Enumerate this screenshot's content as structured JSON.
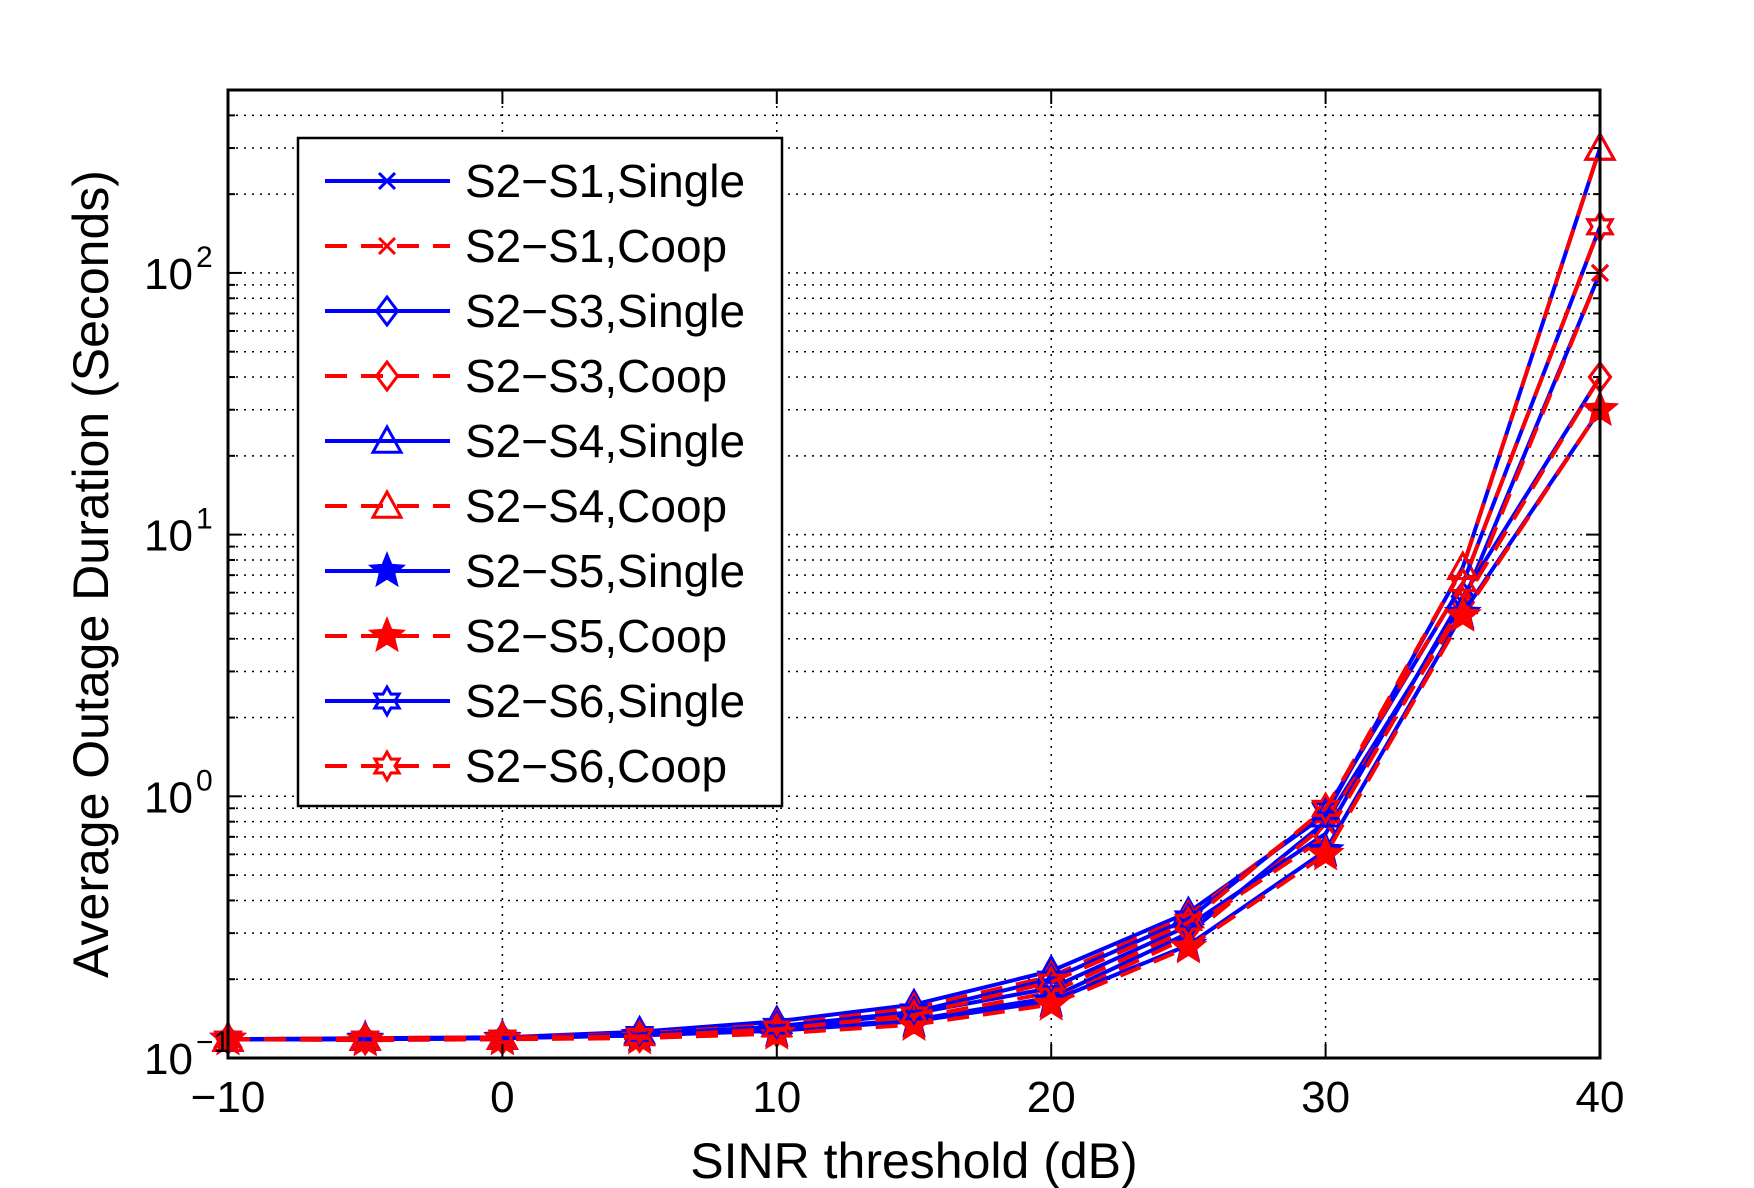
{
  "chart_data": {
    "type": "line",
    "title": "",
    "xlabel": "SINR threshold (dB)",
    "ylabel": "Average Outage Duration (Seconds)",
    "x_scale": "linear",
    "y_scale": "log",
    "xlim": [
      -10,
      40
    ],
    "ylim": [
      0.1,
      500
    ],
    "x": [
      -10,
      -5,
      0,
      5,
      10,
      15,
      20,
      25,
      30,
      35,
      40
    ],
    "x_ticks": [
      {
        "value": -10,
        "label": "−10"
      },
      {
        "value": 0,
        "label": "0"
      },
      {
        "value": 10,
        "label": "10"
      },
      {
        "value": 20,
        "label": "20"
      },
      {
        "value": 30,
        "label": "30"
      },
      {
        "value": 40,
        "label": "40"
      }
    ],
    "y_ticks": [
      {
        "value": 0.1,
        "base": "10",
        "exp": "−1"
      },
      {
        "value": 1,
        "base": "10",
        "exp": "0"
      },
      {
        "value": 10,
        "base": "10",
        "exp": "1"
      },
      {
        "value": 100,
        "base": "10",
        "exp": "2"
      }
    ],
    "grid": true,
    "legend_position": "top-left",
    "series": [
      {
        "name": "S2−S1,Single",
        "color": "#0000ff",
        "dash": "solid",
        "marker": "x",
        "values": [
          0.118,
          0.118,
          0.119,
          0.122,
          0.128,
          0.14,
          0.17,
          0.3,
          0.8,
          5.5,
          100
        ]
      },
      {
        "name": "S2−S1,Coop",
        "color": "#ff0000",
        "dash": "dashed",
        "marker": "x",
        "values": [
          0.118,
          0.118,
          0.118,
          0.12,
          0.126,
          0.138,
          0.165,
          0.29,
          0.78,
          5.2,
          100
        ]
      },
      {
        "name": "S2−S3,Single",
        "color": "#0000ff",
        "dash": "solid",
        "marker": "diamond",
        "values": [
          0.118,
          0.118,
          0.119,
          0.123,
          0.13,
          0.148,
          0.185,
          0.32,
          0.72,
          5.8,
          40
        ]
      },
      {
        "name": "S2−S3,Coop",
        "color": "#ff0000",
        "dash": "dashed",
        "marker": "diamond",
        "values": [
          0.118,
          0.118,
          0.118,
          0.12,
          0.126,
          0.142,
          0.178,
          0.31,
          0.7,
          5.5,
          40
        ]
      },
      {
        "name": "S2−S4,Single",
        "color": "#0000ff",
        "dash": "solid",
        "marker": "triangle",
        "values": [
          0.118,
          0.119,
          0.12,
          0.126,
          0.138,
          0.16,
          0.215,
          0.36,
          0.85,
          7.5,
          300
        ]
      },
      {
        "name": "S2−S4,Coop",
        "color": "#ff0000",
        "dash": "dashed",
        "marker": "triangle",
        "values": [
          0.118,
          0.119,
          0.12,
          0.124,
          0.134,
          0.155,
          0.205,
          0.35,
          0.88,
          7.5,
          300
        ]
      },
      {
        "name": "S2−S5,Single",
        "color": "#0000ff",
        "dash": "solid",
        "marker": "star5",
        "values": [
          0.118,
          0.118,
          0.119,
          0.122,
          0.127,
          0.138,
          0.165,
          0.27,
          0.62,
          5.0,
          30
        ]
      },
      {
        "name": "S2−S5,Coop",
        "color": "#ff0000",
        "dash": "dashed",
        "marker": "star5",
        "values": [
          0.118,
          0.117,
          0.118,
          0.119,
          0.124,
          0.134,
          0.16,
          0.265,
          0.6,
          4.9,
          30
        ]
      },
      {
        "name": "S2−S6,Single",
        "color": "#0000ff",
        "dash": "solid",
        "marker": "star6",
        "values": [
          0.118,
          0.118,
          0.119,
          0.123,
          0.132,
          0.15,
          0.2,
          0.34,
          0.88,
          6.5,
          150
        ]
      },
      {
        "name": "S2−S6,Coop",
        "color": "#ff0000",
        "dash": "dashed",
        "marker": "star6",
        "values": [
          0.118,
          0.118,
          0.119,
          0.121,
          0.129,
          0.146,
          0.195,
          0.33,
          0.9,
          6.5,
          150
        ]
      }
    ]
  }
}
